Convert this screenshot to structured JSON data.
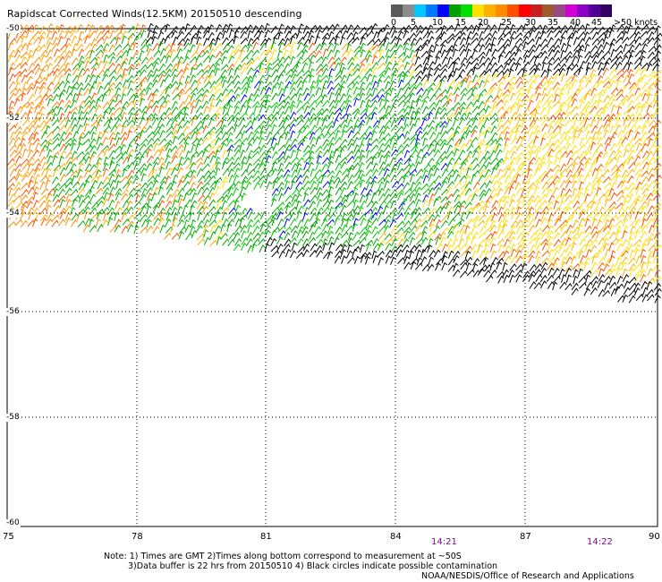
{
  "title": "Rapidscat Corrected Winds(12.5KM) 20150510 descending",
  "colorbar": {
    "swatches": [
      "#5a5a5a",
      "#8c8c8c",
      "#00c8ff",
      "#0078ff",
      "#0000ff",
      "#00a000",
      "#00e000",
      "#ffe000",
      "#ffb000",
      "#ff8c00",
      "#ff5000",
      "#ff0000",
      "#c81e1e",
      "#a05a32",
      "#964b82",
      "#d200d2",
      "#8c00c8",
      "#500096",
      "#320064"
    ],
    "labels": [
      "0",
      "5",
      "10",
      "15",
      "20",
      "25",
      "30",
      "35",
      "40",
      "45",
      ">50 knots"
    ]
  },
  "x_axis": {
    "labels": [
      "75",
      "78",
      "81",
      "84",
      "87",
      "90"
    ],
    "values": [
      75,
      78,
      81,
      84,
      87,
      90
    ],
    "range": [
      75,
      90
    ]
  },
  "y_axis": {
    "labels": [
      "-50",
      "-52",
      "-54",
      "-56",
      "-58",
      "-60"
    ],
    "values": [
      -50,
      -52,
      -54,
      -56,
      -58,
      -60
    ],
    "range": [
      -60,
      -50
    ]
  },
  "times": [
    {
      "label": "14:21",
      "lon": 85.1
    },
    {
      "label": "14:22",
      "lon": 88.7
    }
  ],
  "notes": {
    "line1": "Note: 1) Times are GMT 2)Times along bottom correspond to measurement at ~50S",
    "line2": "3)Data buffer is 22 hrs from 20150510 4) Black circles indicate possible contamination",
    "credit": "NOAA/NESDIS/Office of Research and Applications"
  }
}
